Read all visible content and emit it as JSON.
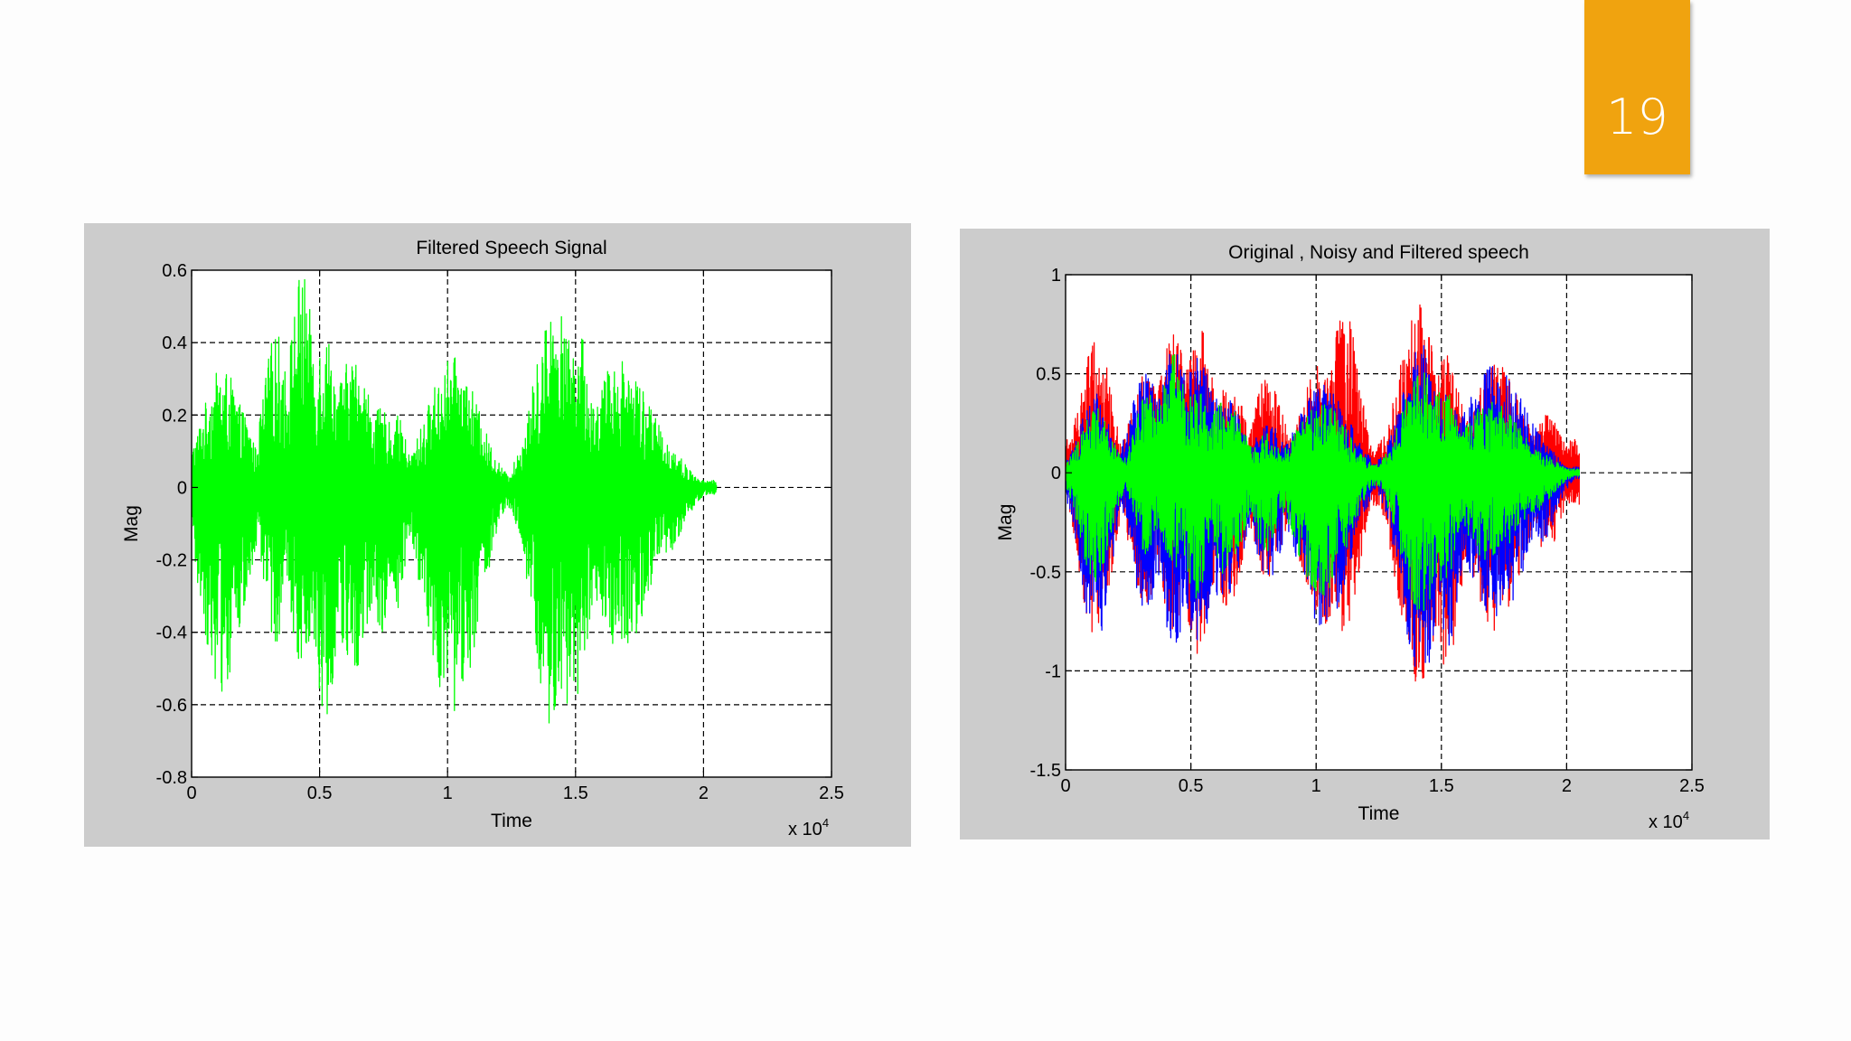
{
  "slide_number": "19",
  "colors": {
    "slide_number_box": "#f0a30f",
    "figure_background": "#cccccc",
    "original": "#0000ff",
    "noisy": "#ff0000",
    "filtered": "#00ff00"
  },
  "chart_data": [
    {
      "type": "line",
      "title": "Filtered Speech Signal",
      "xlabel": "Time",
      "ylabel": "Mag",
      "x_multiplier": "x 10^4",
      "xlim": [
        0,
        2.5
      ],
      "ylim": [
        -0.8,
        0.6
      ],
      "xticks": [
        0,
        0.5,
        1,
        1.5,
        2,
        2.5
      ],
      "yticks": [
        -0.8,
        -0.6,
        -0.4,
        -0.2,
        0,
        0.2,
        0.4,
        0.6
      ],
      "grid": true,
      "signal_extent": [
        0,
        2.05
      ],
      "series": [
        {
          "color": "#00ff00",
          "bursts": [
            {
              "center": 0.12,
              "width": 0.08,
              "peak_pos": 0.33,
              "peak_neg": -0.57
            },
            {
              "center": 0.19,
              "width": 0.05,
              "peak_pos": 0.22,
              "peak_neg": -0.38
            },
            {
              "center": 0.33,
              "width": 0.05,
              "peak_pos": 0.43,
              "peak_neg": -0.43
            },
            {
              "center": 0.43,
              "width": 0.05,
              "peak_pos": 0.6,
              "peak_neg": -0.5
            },
            {
              "center": 0.52,
              "width": 0.05,
              "peak_pos": 0.44,
              "peak_neg": -0.65
            },
            {
              "center": 0.63,
              "width": 0.08,
              "peak_pos": 0.36,
              "peak_neg": -0.52
            },
            {
              "center": 0.74,
              "width": 0.05,
              "peak_pos": 0.22,
              "peak_neg": -0.4
            },
            {
              "center": 0.8,
              "width": 0.04,
              "peak_pos": 0.2,
              "peak_neg": -0.34
            },
            {
              "center": 1.02,
              "width": 0.1,
              "peak_pos": 0.36,
              "peak_neg": -0.63
            },
            {
              "center": 1.42,
              "width": 0.08,
              "peak_pos": 0.51,
              "peak_neg": -0.72
            },
            {
              "center": 1.51,
              "width": 0.05,
              "peak_pos": 0.44,
              "peak_neg": -0.58
            },
            {
              "center": 1.68,
              "width": 0.12,
              "peak_pos": 0.36,
              "peak_neg": -0.45
            },
            {
              "center": 1.83,
              "width": 0.08,
              "peak_pos": 0.14,
              "peak_neg": -0.22
            }
          ]
        }
      ]
    },
    {
      "type": "line",
      "title": "Original , Noisy and Filtered speech",
      "xlabel": "Time",
      "ylabel": "Mag",
      "x_multiplier": "x 10^4",
      "xlim": [
        0,
        2.5
      ],
      "ylim": [
        -1.5,
        1
      ],
      "xticks": [
        0,
        0.5,
        1,
        1.5,
        2,
        2.5
      ],
      "yticks": [
        -1.5,
        -1,
        -0.5,
        0,
        0.5,
        1
      ],
      "grid": true,
      "signal_extent": [
        0,
        2.05
      ],
      "series": [
        {
          "color": "#ff0000",
          "baseline": 0.17,
          "bursts": [
            {
              "center": 0.12,
              "width": 0.06,
              "peak_pos": 0.7,
              "peak_neg": -0.9
            },
            {
              "center": 0.32,
              "width": 0.06,
              "peak_pos": 0.5,
              "peak_neg": -0.7
            },
            {
              "center": 0.43,
              "width": 0.06,
              "peak_pos": 0.7,
              "peak_neg": -0.8
            },
            {
              "center": 0.53,
              "width": 0.06,
              "peak_pos": 0.75,
              "peak_neg": -0.95
            },
            {
              "center": 0.65,
              "width": 0.06,
              "peak_pos": 0.5,
              "peak_neg": -0.7
            },
            {
              "center": 0.81,
              "width": 0.06,
              "peak_pos": 0.5,
              "peak_neg": -0.55
            },
            {
              "center": 1.02,
              "width": 0.08,
              "peak_pos": 0.55,
              "peak_neg": -0.8
            },
            {
              "center": 1.11,
              "width": 0.06,
              "peak_pos": 0.85,
              "peak_neg": -0.85
            },
            {
              "center": 1.41,
              "width": 0.08,
              "peak_pos": 0.85,
              "peak_neg": -1.1
            },
            {
              "center": 1.52,
              "width": 0.06,
              "peak_pos": 0.6,
              "peak_neg": -1.0
            },
            {
              "center": 1.72,
              "width": 0.1,
              "peak_pos": 0.55,
              "peak_neg": -0.8
            },
            {
              "center": 1.92,
              "width": 0.06,
              "peak_pos": 0.3,
              "peak_neg": -0.4
            }
          ]
        },
        {
          "color": "#0000ff",
          "baseline": 0.03,
          "bursts": [
            {
              "center": 0.12,
              "width": 0.06,
              "peak_pos": 0.4,
              "peak_neg": -0.88
            },
            {
              "center": 0.32,
              "width": 0.06,
              "peak_pos": 0.5,
              "peak_neg": -0.7
            },
            {
              "center": 0.43,
              "width": 0.06,
              "peak_pos": 0.65,
              "peak_neg": -0.9
            },
            {
              "center": 0.53,
              "width": 0.06,
              "peak_pos": 0.6,
              "peak_neg": -0.9
            },
            {
              "center": 0.63,
              "width": 0.08,
              "peak_pos": 0.4,
              "peak_neg": -0.65
            },
            {
              "center": 0.81,
              "width": 0.06,
              "peak_pos": 0.25,
              "peak_neg": -0.55
            },
            {
              "center": 1.03,
              "width": 0.1,
              "peak_pos": 0.45,
              "peak_neg": -0.8
            },
            {
              "center": 1.42,
              "width": 0.08,
              "peak_pos": 0.65,
              "peak_neg": -1.05
            },
            {
              "center": 1.52,
              "width": 0.06,
              "peak_pos": 0.4,
              "peak_neg": -0.9
            },
            {
              "center": 1.72,
              "width": 0.12,
              "peak_pos": 0.55,
              "peak_neg": -0.75
            },
            {
              "center": 1.9,
              "width": 0.06,
              "peak_pos": 0.15,
              "peak_neg": -0.35
            }
          ]
        },
        {
          "color": "#00ff00",
          "baseline": 0.02,
          "bursts": [
            {
              "center": 0.12,
              "width": 0.06,
              "peak_pos": 0.33,
              "peak_neg": -0.57
            },
            {
              "center": 0.33,
              "width": 0.05,
              "peak_pos": 0.43,
              "peak_neg": -0.43
            },
            {
              "center": 0.43,
              "width": 0.05,
              "peak_pos": 0.6,
              "peak_neg": -0.5
            },
            {
              "center": 0.52,
              "width": 0.05,
              "peak_pos": 0.44,
              "peak_neg": -0.65
            },
            {
              "center": 0.63,
              "width": 0.08,
              "peak_pos": 0.36,
              "peak_neg": -0.52
            },
            {
              "center": 0.8,
              "width": 0.05,
              "peak_pos": 0.2,
              "peak_neg": -0.4
            },
            {
              "center": 1.02,
              "width": 0.1,
              "peak_pos": 0.36,
              "peak_neg": -0.63
            },
            {
              "center": 1.42,
              "width": 0.08,
              "peak_pos": 0.51,
              "peak_neg": -0.72
            },
            {
              "center": 1.51,
              "width": 0.05,
              "peak_pos": 0.44,
              "peak_neg": -0.58
            },
            {
              "center": 1.7,
              "width": 0.12,
              "peak_pos": 0.36,
              "peak_neg": -0.45
            },
            {
              "center": 1.85,
              "width": 0.08,
              "peak_pos": 0.14,
              "peak_neg": -0.22
            }
          ]
        }
      ]
    }
  ]
}
